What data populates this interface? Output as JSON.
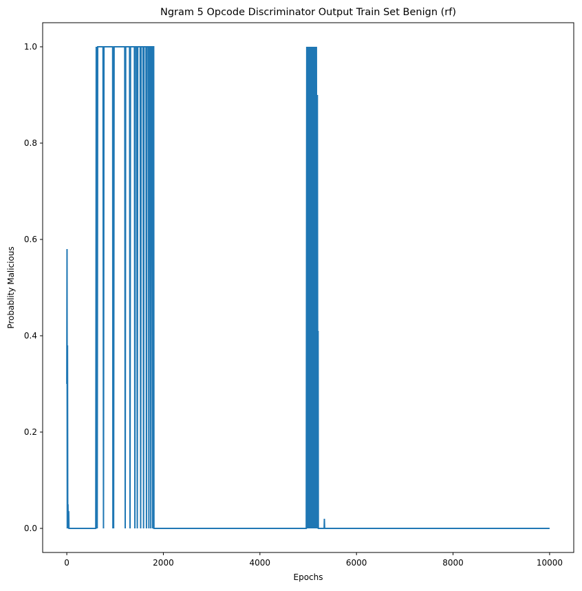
{
  "chart_data": {
    "type": "line",
    "title": "Ngram 5 Opcode Discriminator Output Train Set Benign (rf)",
    "xlabel": "Epochs",
    "ylabel": "Probablity Malicious",
    "xlim": [
      -500,
      10500
    ],
    "ylim": [
      -0.05,
      1.05
    ],
    "x_ticks": [
      0,
      2000,
      4000,
      6000,
      8000,
      10000
    ],
    "y_ticks": [
      0.0,
      0.2,
      0.4,
      0.6,
      0.8,
      1.0
    ],
    "x_tick_labels": [
      "0",
      "2000",
      "4000",
      "6000",
      "8000",
      "10000"
    ],
    "y_tick_labels": [
      "0.0",
      "0.2",
      "0.4",
      "0.6",
      "0.8",
      "1.0"
    ],
    "grid": false,
    "series": [
      {
        "color": "#1f77b4",
        "points": [
          [
            0,
            0.3
          ],
          [
            5,
            0.58
          ],
          [
            10,
            0.0
          ],
          [
            15,
            0.38
          ],
          [
            20,
            0.0
          ],
          [
            25,
            0.05
          ],
          [
            30,
            0.0
          ],
          [
            40,
            0.036
          ],
          [
            45,
            0.0
          ],
          [
            600,
            0.0
          ],
          [
            610,
            1.0
          ],
          [
            620,
            0.0
          ],
          [
            625,
            1.0
          ],
          [
            630,
            0.0
          ],
          [
            640,
            1.0
          ],
          [
            750,
            1.0
          ],
          [
            760,
            0.0
          ],
          [
            770,
            1.0
          ],
          [
            950,
            1.0
          ],
          [
            955,
            0.0
          ],
          [
            960,
            1.0
          ],
          [
            970,
            0.0
          ],
          [
            980,
            1.0
          ],
          [
            1200,
            1.0
          ],
          [
            1210,
            0.0
          ],
          [
            1220,
            1.0
          ],
          [
            1300,
            1.0
          ],
          [
            1310,
            0.0
          ],
          [
            1320,
            1.0
          ],
          [
            1400,
            1.0
          ],
          [
            1410,
            0.0
          ],
          [
            1420,
            1.0
          ],
          [
            1450,
            1.0
          ],
          [
            1460,
            0.0
          ],
          [
            1470,
            1.0
          ],
          [
            1520,
            1.0
          ],
          [
            1530,
            0.0
          ],
          [
            1540,
            1.0
          ],
          [
            1580,
            1.0
          ],
          [
            1590,
            0.0
          ],
          [
            1600,
            1.0
          ],
          [
            1640,
            1.0
          ],
          [
            1650,
            0.0
          ],
          [
            1660,
            1.0
          ],
          [
            1690,
            1.0
          ],
          [
            1700,
            0.0
          ],
          [
            1710,
            1.0
          ],
          [
            1730,
            1.0
          ],
          [
            1740,
            0.0
          ],
          [
            1750,
            1.0
          ],
          [
            1770,
            1.0
          ],
          [
            1780,
            0.0
          ],
          [
            1790,
            1.0
          ],
          [
            1800,
            1.0
          ],
          [
            1805,
            0.0
          ],
          [
            4960,
            0.0
          ],
          [
            4970,
            1.0
          ],
          [
            4980,
            0.0
          ],
          [
            4990,
            1.0
          ],
          [
            5000,
            0.0
          ],
          [
            5010,
            1.0
          ],
          [
            5020,
            0.0
          ],
          [
            5030,
            1.0
          ],
          [
            5040,
            0.0
          ],
          [
            5050,
            1.0
          ],
          [
            5060,
            0.0
          ],
          [
            5070,
            1.0
          ],
          [
            5080,
            0.0
          ],
          [
            5090,
            1.0
          ],
          [
            5100,
            0.0
          ],
          [
            5110,
            1.0
          ],
          [
            5120,
            0.0
          ],
          [
            5130,
            1.0
          ],
          [
            5140,
            0.0
          ],
          [
            5150,
            1.0
          ],
          [
            5160,
            0.0
          ],
          [
            5170,
            1.0
          ],
          [
            5180,
            0.0
          ],
          [
            5190,
            0.9
          ],
          [
            5200,
            0.0
          ],
          [
            5205,
            0.41
          ],
          [
            5210,
            0.0
          ],
          [
            5330,
            0.0
          ],
          [
            5335,
            0.02
          ],
          [
            5340,
            0.0
          ],
          [
            10000,
            0.0
          ]
        ]
      }
    ]
  }
}
